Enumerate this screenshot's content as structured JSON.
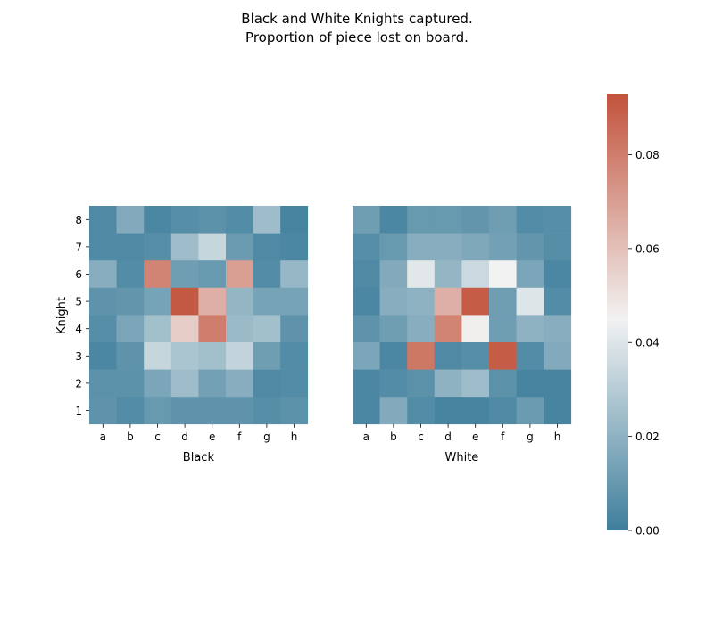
{
  "chart_data": {
    "type": "heatmap",
    "title": "Black and White Knights captured.",
    "subtitle": "Proportion of piece lost on board.",
    "ylabel": "Knight",
    "files": [
      "a",
      "b",
      "c",
      "d",
      "e",
      "f",
      "g",
      "h"
    ],
    "ranks": [
      "8",
      "7",
      "6",
      "5",
      "4",
      "3",
      "2",
      "1"
    ],
    "color_scale": {
      "min": 0.0,
      "max": 0.093,
      "low_color": "#3f7f9c",
      "mid_color": "#f2f2f2",
      "high_color": "#c2523b",
      "ticks": [
        "0.00",
        "0.02",
        "0.04",
        "0.06",
        "0.08"
      ],
      "tick_values": [
        0.0,
        0.02,
        0.04,
        0.06,
        0.08
      ]
    },
    "panels": [
      {
        "xlabel": "Black",
        "values": [
          [
            0.004,
            0.017,
            0.003,
            0.006,
            0.007,
            0.005,
            0.024,
            0.002
          ],
          [
            0.004,
            0.004,
            0.006,
            0.024,
            0.034,
            0.011,
            0.004,
            0.003
          ],
          [
            0.018,
            0.005,
            0.078,
            0.012,
            0.01,
            0.07,
            0.005,
            0.022
          ],
          [
            0.008,
            0.009,
            0.014,
            0.091,
            0.065,
            0.021,
            0.014,
            0.014
          ],
          [
            0.006,
            0.015,
            0.025,
            0.056,
            0.08,
            0.023,
            0.025,
            0.008
          ],
          [
            0.003,
            0.008,
            0.034,
            0.027,
            0.025,
            0.033,
            0.012,
            0.005
          ],
          [
            0.007,
            0.007,
            0.015,
            0.024,
            0.013,
            0.018,
            0.004,
            0.005
          ],
          [
            0.008,
            0.005,
            0.01,
            0.008,
            0.008,
            0.008,
            0.006,
            0.007
          ]
        ]
      },
      {
        "xlabel": "White",
        "values": [
          [
            0.012,
            0.003,
            0.01,
            0.01,
            0.009,
            0.012,
            0.005,
            0.006
          ],
          [
            0.006,
            0.01,
            0.018,
            0.018,
            0.016,
            0.013,
            0.009,
            0.006
          ],
          [
            0.004,
            0.017,
            0.041,
            0.021,
            0.035,
            0.045,
            0.015,
            0.003
          ],
          [
            0.003,
            0.018,
            0.02,
            0.065,
            0.09,
            0.012,
            0.04,
            0.005
          ],
          [
            0.008,
            0.012,
            0.018,
            0.078,
            0.046,
            0.012,
            0.02,
            0.018
          ],
          [
            0.015,
            0.003,
            0.082,
            0.004,
            0.006,
            0.09,
            0.005,
            0.017
          ],
          [
            0.003,
            0.005,
            0.007,
            0.02,
            0.024,
            0.007,
            0.002,
            0.002
          ],
          [
            0.003,
            0.017,
            0.005,
            0.002,
            0.002,
            0.004,
            0.011,
            0.002
          ]
        ]
      }
    ]
  }
}
